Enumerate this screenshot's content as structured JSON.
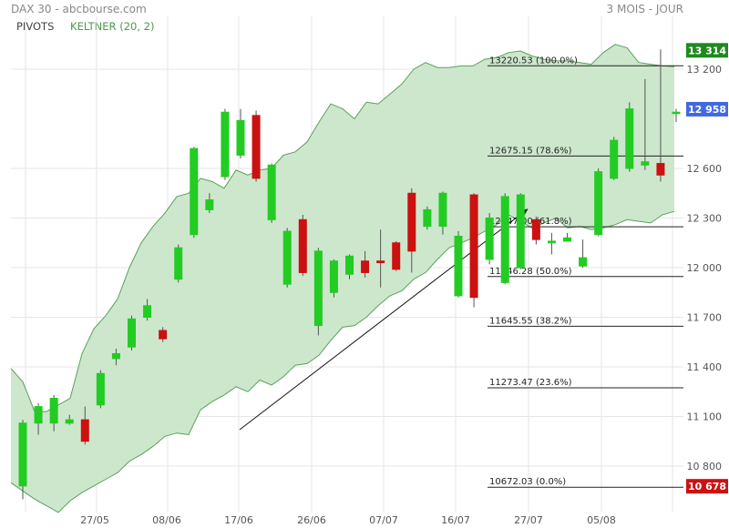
{
  "header": {
    "title": "DAX 30 - abcbourse.com",
    "period": "3 MOIS - JOUR"
  },
  "legend": {
    "pivots_label": "PIVOTS",
    "keltner_label": "KELTNER (20, 2)"
  },
  "colors": {
    "up": "#22cc22",
    "down": "#cc1111",
    "keltner_fill": "#cde7cd",
    "keltner_line": "#5aa05a",
    "legend_pivots": "#444444",
    "legend_keltner": "#4a9a4a",
    "badge_high_bg": "#1e8a1e",
    "badge_last_bg": "#4169e1",
    "badge_low_bg": "#cc1111"
  },
  "chart_data": {
    "type": "candlestick",
    "title": "DAX 30",
    "y_ticks": [
      10800,
      11100,
      11400,
      11700,
      12000,
      12300,
      12600,
      13200
    ],
    "y_ticks_labels": [
      "10 800",
      "11 100",
      "11 400",
      "11 700",
      "12 000",
      "12 300",
      "12 600",
      "13 200"
    ],
    "x_tick_labels": [
      {
        "i": 4,
        "label": "27/05"
      },
      {
        "i": 8,
        "label": "08/06"
      },
      {
        "i": 11,
        "label": "17/06"
      },
      {
        "i": 15,
        "label": "26/06"
      },
      {
        "i": 18,
        "label": "07/07"
      },
      {
        "i": 22,
        "label": "16/07"
      },
      {
        "i": 25,
        "label": "27/07"
      },
      {
        "i": 29,
        "label": "05/08"
      }
    ],
    "candles": [
      {
        "o": 10680,
        "c": 11060,
        "h": 11080,
        "l": 10600
      },
      {
        "o": 11060,
        "c": 11160,
        "h": 11180,
        "l": 10990
      },
      {
        "o": 11060,
        "c": 11210,
        "h": 11230,
        "l": 11010
      },
      {
        "o": 11060,
        "c": 11080,
        "h": 11110,
        "l": 11050
      },
      {
        "o": 11080,
        "c": 10950,
        "h": 11160,
        "l": 10930
      },
      {
        "o": 11170,
        "c": 11360,
        "h": 11380,
        "l": 11150
      },
      {
        "o": 11450,
        "c": 11480,
        "h": 11510,
        "l": 11410
      },
      {
        "o": 11520,
        "c": 11690,
        "h": 11710,
        "l": 11500
      },
      {
        "o": 11700,
        "c": 11770,
        "h": 11810,
        "l": 11680
      },
      {
        "o": 11620,
        "c": 11570,
        "h": 11640,
        "l": 11550
      },
      {
        "o": 11930,
        "c": 12120,
        "h": 12140,
        "l": 11910
      },
      {
        "o": 12200,
        "c": 12720,
        "h": 12730,
        "l": 12180
      },
      {
        "o": 12350,
        "c": 12410,
        "h": 12450,
        "l": 12330
      },
      {
        "o": 12550,
        "c": 12940,
        "h": 12960,
        "l": 12530
      },
      {
        "o": 12680,
        "c": 12890,
        "h": 12960,
        "l": 12660
      },
      {
        "o": 12920,
        "c": 12540,
        "h": 12950,
        "l": 12520
      },
      {
        "o": 12290,
        "c": 12620,
        "h": 12630,
        "l": 12270
      },
      {
        "o": 11900,
        "c": 12220,
        "h": 12240,
        "l": 11880
      },
      {
        "o": 12290,
        "c": 11970,
        "h": 12320,
        "l": 11950
      },
      {
        "o": 11650,
        "c": 12100,
        "h": 12120,
        "l": 11590
      },
      {
        "o": 11850,
        "c": 12040,
        "h": 12050,
        "l": 11820
      },
      {
        "o": 11960,
        "c": 12070,
        "h": 12080,
        "l": 11930
      },
      {
        "o": 12040,
        "c": 11970,
        "h": 12100,
        "l": 11940
      },
      {
        "o": 12040,
        "c": 12030,
        "h": 12230,
        "l": 11880
      },
      {
        "o": 12150,
        "c": 11990,
        "h": 12160,
        "l": 11980
      },
      {
        "o": 12450,
        "c": 12100,
        "h": 12480,
        "l": 11970
      },
      {
        "o": 12250,
        "c": 12350,
        "h": 12370,
        "l": 12230
      },
      {
        "o": 12250,
        "c": 12450,
        "h": 12460,
        "l": 12200
      },
      {
        "o": 11830,
        "c": 12190,
        "h": 12220,
        "l": 11820
      },
      {
        "o": 12440,
        "c": 11820,
        "h": 12450,
        "l": 11760
      },
      {
        "o": 12050,
        "c": 12300,
        "h": 12330,
        "l": 12020
      },
      {
        "o": 11910,
        "c": 12430,
        "h": 12450,
        "l": 11900
      },
      {
        "o": 12000,
        "c": 12440,
        "h": 12450,
        "l": 11990
      },
      {
        "o": 12290,
        "c": 12170,
        "h": 12310,
        "l": 12140
      },
      {
        "o": 12150,
        "c": 12160,
        "h": 12210,
        "l": 12080
      },
      {
        "o": 12160,
        "c": 12180,
        "h": 12210,
        "l": 12170
      },
      {
        "o": 12010,
        "c": 12060,
        "h": 12170,
        "l": 12000
      },
      {
        "o": 12200,
        "c": 12580,
        "h": 12600,
        "l": 12190
      },
      {
        "o": 12540,
        "c": 12770,
        "h": 12790,
        "l": 12530
      },
      {
        "o": 12600,
        "c": 12960,
        "h": 13000,
        "l": 12580
      },
      {
        "o": 12620,
        "c": 12640,
        "h": 13140,
        "l": 12590
      },
      {
        "o": 12630,
        "c": 12560,
        "h": 13320,
        "l": 12520
      },
      {
        "o": 12940,
        "c": 12940,
        "h": 12960,
        "l": 12880
      }
    ],
    "keltner_upper": [
      11390,
      11310,
      11130,
      11130,
      11170,
      11210,
      11480,
      11630,
      11710,
      11810,
      12000,
      12150,
      12250,
      12330,
      12430,
      12450,
      12540,
      12520,
      12480,
      12590,
      12560,
      12590,
      12600,
      12680,
      12700,
      12760,
      12880,
      12990,
      12960,
      12900,
      13000,
      12990,
      13050,
      13110,
      13200,
      13240,
      13210,
      13210,
      13220,
      13220,
      13260,
      13270,
      13300,
      13310,
      13280,
      13260,
      13250,
      13250,
      13240,
      13230,
      13300,
      13350,
      13330,
      13240,
      13230,
      13220,
      13215
    ],
    "keltner_lower": [
      10700,
      10650,
      10600,
      10560,
      10520,
      10590,
      10640,
      10680,
      10720,
      10760,
      10830,
      10870,
      10920,
      10980,
      11000,
      10990,
      11140,
      11190,
      11230,
      11280,
      11250,
      11320,
      11290,
      11340,
      11410,
      11420,
      11470,
      11560,
      11640,
      11650,
      11700,
      11770,
      11830,
      11860,
      11930,
      11970,
      12050,
      12120,
      12150,
      12180,
      12220,
      12260,
      12320,
      12280,
      12240,
      12270,
      12300,
      12240,
      12250,
      12230,
      12240,
      12260,
      12290,
      12280,
      12270,
      12320,
      12340
    ],
    "fibonacci": [
      {
        "value": 13220.53,
        "label": "13220.53",
        "pct": "(100.0%)"
      },
      {
        "value": 12675.15,
        "label": "12675.15",
        "pct": "(78.6%)"
      },
      {
        "value": 12247.0,
        "label": "12247.00",
        "pct": "(61.8%)"
      },
      {
        "value": 11946.28,
        "label": "11946.28",
        "pct": "(50.0%)"
      },
      {
        "value": 11645.55,
        "label": "11645.55",
        "pct": "(38.2%)"
      },
      {
        "value": 11273.47,
        "label": "11273.47",
        "pct": "(23.6%)"
      },
      {
        "value": 10672.03,
        "label": "10672.03",
        "pct": "(0.0%)"
      }
    ],
    "trend_line": {
      "start": {
        "i": 10,
        "v": 11020
      },
      "end": {
        "i": 24,
        "v": 12350
      }
    },
    "price_badges": [
      {
        "value": 13314,
        "label": "13 314",
        "kind": "high"
      },
      {
        "value": 12958,
        "label": "12 958",
        "kind": "last"
      },
      {
        "value": 10678,
        "label": "10 678",
        "kind": "low"
      }
    ]
  }
}
